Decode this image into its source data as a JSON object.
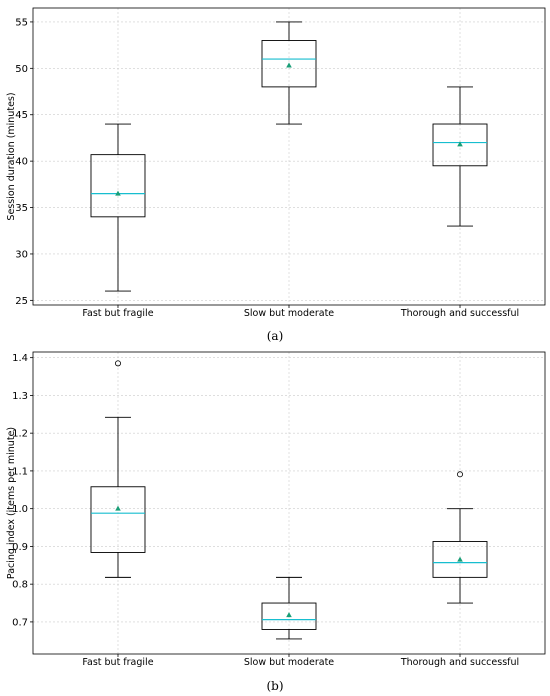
{
  "chart_data": [
    {
      "type": "box",
      "panel_label": "(a)",
      "xlabel": "",
      "ylabel": "Session duration (minutes)",
      "ylim": [
        24.5,
        56.5
      ],
      "yticks": [
        25,
        30,
        35,
        40,
        45,
        50,
        55
      ],
      "grid": true,
      "categories": [
        "Fast but fragile",
        "Slow but moderate",
        "Thorough and successful"
      ],
      "boxes": [
        {
          "min": 26,
          "q1": 34,
          "median": 36.5,
          "q3": 40.7,
          "max": 44,
          "mean": 36.5,
          "outliers": []
        },
        {
          "min": 44,
          "q1": 48,
          "median": 51,
          "q3": 53,
          "max": 55,
          "mean": 50.3,
          "outliers": []
        },
        {
          "min": 33,
          "q1": 39.5,
          "median": 42,
          "q3": 44,
          "max": 48,
          "mean": 41.8,
          "outliers": []
        }
      ],
      "colors": {
        "median": "#17becf",
        "mean": "#1a9e77",
        "box": "#000000",
        "grid": "#cccccc"
      }
    },
    {
      "type": "box",
      "panel_label": "(b)",
      "xlabel": "",
      "ylabel": "Pacing index (items per minute)",
      "ylim": [
        0.615,
        1.415
      ],
      "yticks": [
        "0.7",
        "0.8",
        "0.9",
        "1.0",
        "1.1",
        "1.2",
        "1.3",
        "1.4"
      ],
      "grid": true,
      "categories": [
        "Fast but fragile",
        "Slow but moderate",
        "Thorough and successful"
      ],
      "boxes": [
        {
          "min": 0.818,
          "q1": 0.884,
          "median": 0.988,
          "q3": 1.058,
          "max": 1.242,
          "mean": 1.0,
          "outliers": [
            1.385
          ]
        },
        {
          "min": 0.655,
          "q1": 0.68,
          "median": 0.706,
          "q3": 0.75,
          "max": 0.818,
          "mean": 0.718,
          "outliers": []
        },
        {
          "min": 0.75,
          "q1": 0.818,
          "median": 0.857,
          "q3": 0.913,
          "max": 1.0,
          "mean": 0.865,
          "outliers": [
            1.091
          ]
        }
      ],
      "colors": {
        "median": "#17becf",
        "mean": "#1a9e77",
        "box": "#000000",
        "grid": "#cccccc"
      }
    }
  ]
}
